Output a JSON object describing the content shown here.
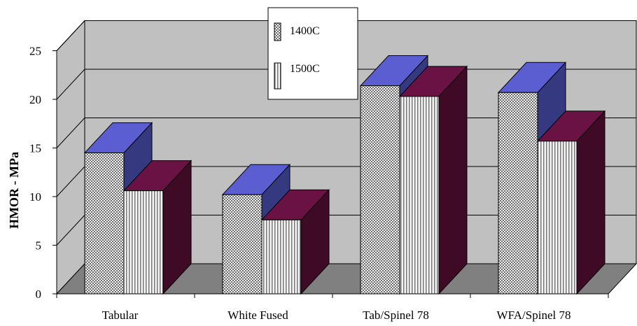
{
  "chart_data": {
    "type": "bar",
    "title": "",
    "xlabel": "",
    "ylabel": "HMOR - MPa",
    "ylim": [
      0,
      25
    ],
    "yticks": [
      "0",
      "5",
      "10",
      "15",
      "20",
      "25"
    ],
    "grid": true,
    "legend_position": "top-center",
    "categories": [
      "Tabular",
      "White Fused",
      "Tab/Spinel 78",
      "WFA/Spinel 78"
    ],
    "series": [
      {
        "name": "1400C",
        "values": [
          14.5,
          10.2,
          21.4,
          20.7
        ],
        "pattern": "checkered",
        "front_color": "#c8c8c8",
        "top_color": "#5a5ed0",
        "side_color": "#353a80"
      },
      {
        "name": "1500C",
        "values": [
          10.6,
          7.6,
          20.3,
          15.7
        ],
        "pattern": "vertical-stripes",
        "front_color": "#ececec",
        "top_color": "#6a1244",
        "side_color": "#3e0a26"
      }
    ],
    "colors": {
      "wall": "#c0c0c0",
      "floor": "#808080",
      "floor_side": "#606060",
      "gridline": "#000000"
    }
  }
}
